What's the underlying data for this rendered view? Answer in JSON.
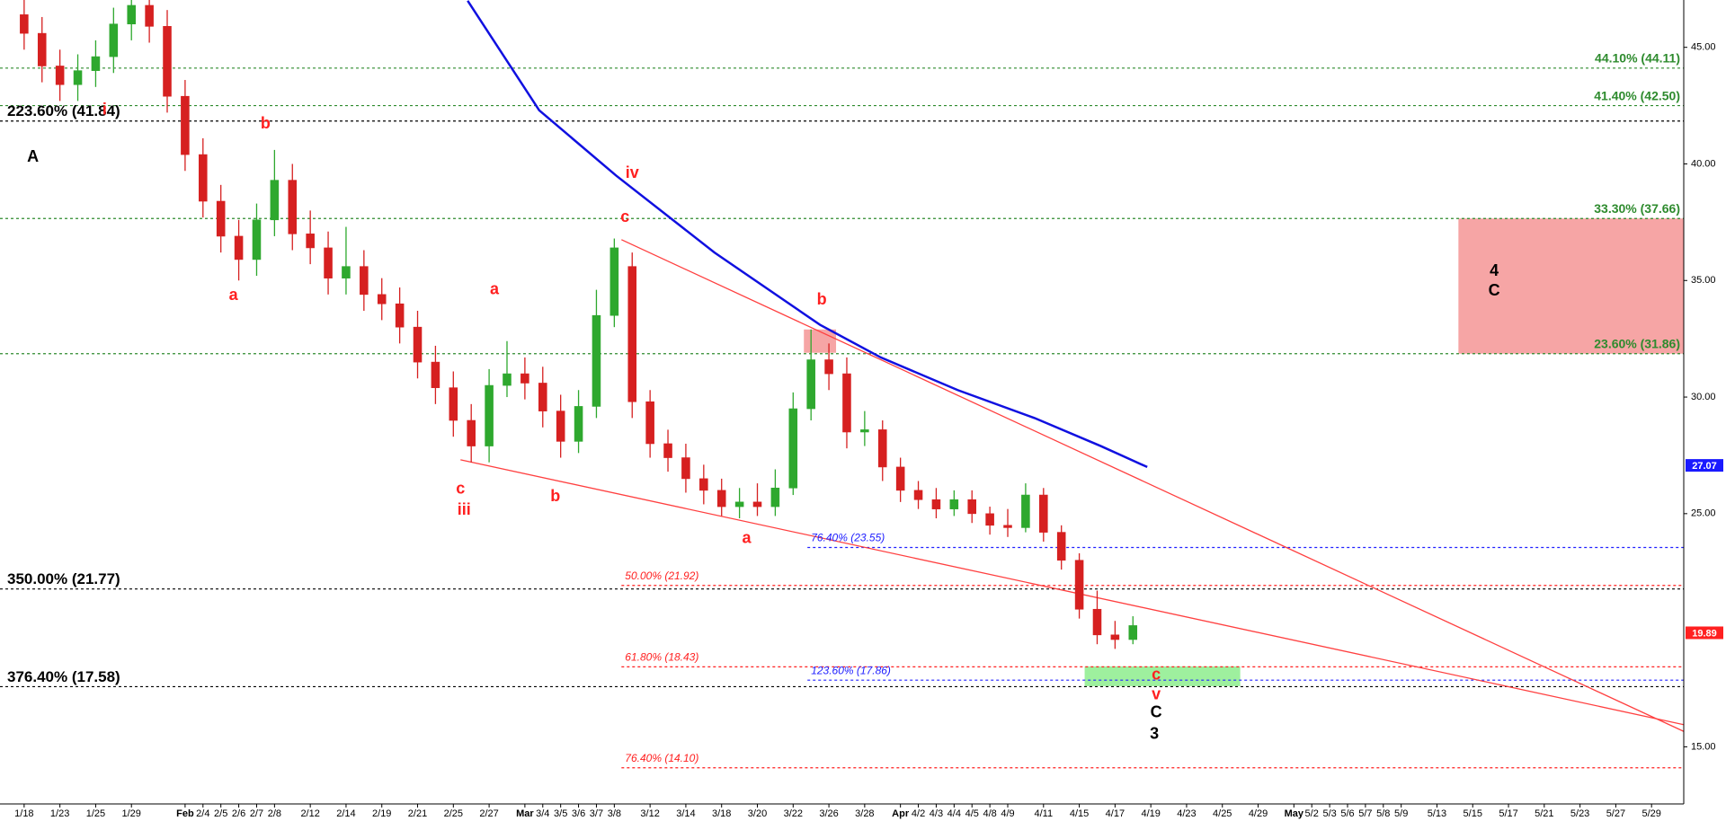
{
  "chart_data": {
    "type": "candlestick",
    "xlim": [
      -1.35,
      92.8
    ],
    "ylim": [
      12.55,
      47.03
    ],
    "xticks": [
      {
        "value": 0,
        "label": "1/18"
      },
      {
        "value": 2,
        "label": "1/23"
      },
      {
        "value": 4,
        "label": "1/25"
      },
      {
        "value": 6,
        "label": "1/29"
      },
      {
        "value": 9,
        "label": "Feb"
      },
      {
        "value": 10,
        "label": "2/4"
      },
      {
        "value": 11,
        "label": "2/5"
      },
      {
        "value": 12,
        "label": "2/6"
      },
      {
        "value": 13,
        "label": "2/7"
      },
      {
        "value": 14,
        "label": "2/8"
      },
      {
        "value": 16,
        "label": "2/12"
      },
      {
        "value": 18,
        "label": "2/14"
      },
      {
        "value": 20,
        "label": "2/19"
      },
      {
        "value": 22,
        "label": "2/21"
      },
      {
        "value": 24,
        "label": "2/25"
      },
      {
        "value": 26,
        "label": "2/27"
      },
      {
        "value": 28,
        "label": "Mar"
      },
      {
        "value": 29,
        "label": "3/4"
      },
      {
        "value": 30,
        "label": "3/5"
      },
      {
        "value": 31,
        "label": "3/6"
      },
      {
        "value": 32,
        "label": "3/7"
      },
      {
        "value": 33,
        "label": "3/8"
      },
      {
        "value": 35,
        "label": "3/12"
      },
      {
        "value": 37,
        "label": "3/14"
      },
      {
        "value": 39,
        "label": "3/18"
      },
      {
        "value": 41,
        "label": "3/20"
      },
      {
        "value": 43,
        "label": "3/22"
      },
      {
        "value": 45,
        "label": "3/26"
      },
      {
        "value": 47,
        "label": "3/28"
      },
      {
        "value": 49,
        "label": "Apr"
      },
      {
        "value": 50,
        "label": "4/2"
      },
      {
        "value": 51,
        "label": "4/3"
      },
      {
        "value": 52,
        "label": "4/4"
      },
      {
        "value": 53,
        "label": "4/5"
      },
      {
        "value": 54,
        "label": "4/8"
      },
      {
        "value": 55,
        "label": "4/9"
      },
      {
        "value": 57,
        "label": "4/11"
      },
      {
        "value": 59,
        "label": "4/15"
      },
      {
        "value": 61,
        "label": "4/17"
      },
      {
        "value": 63,
        "label": "4/19"
      },
      {
        "value": 65,
        "label": "4/23"
      },
      {
        "value": 67,
        "label": "4/25"
      },
      {
        "value": 69,
        "label": "4/29"
      },
      {
        "value": 71,
        "label": "May"
      },
      {
        "value": 72,
        "label": "5/2"
      },
      {
        "value": 73,
        "label": "5/3"
      },
      {
        "value": 74,
        "label": "5/6"
      },
      {
        "value": 75,
        "label": "5/7"
      },
      {
        "value": 76,
        "label": "5/8"
      },
      {
        "value": 77,
        "label": "5/9"
      },
      {
        "value": 79,
        "label": "5/13"
      },
      {
        "value": 81,
        "label": "5/15"
      },
      {
        "value": 83,
        "label": "5/17"
      },
      {
        "value": 85,
        "label": "5/21"
      },
      {
        "value": 87,
        "label": "5/23"
      },
      {
        "value": 89,
        "label": "5/27"
      },
      {
        "value": 91,
        "label": "5/29"
      }
    ],
    "yticks": [
      {
        "value": 15,
        "label": "15.00"
      },
      {
        "value": 25,
        "label": "25.00"
      },
      {
        "value": 30,
        "label": "30.00"
      },
      {
        "value": 35,
        "label": "35.00"
      },
      {
        "value": 40,
        "label": "40.00"
      },
      {
        "value": 45,
        "label": "45.00"
      }
    ],
    "up_color": "#2ea82e",
    "down_color": "#d62020",
    "candles": {
      "x": [
        0,
        1,
        2,
        3,
        4,
        5,
        6,
        7,
        8,
        9,
        10,
        11,
        12,
        13,
        14,
        15,
        16,
        17,
        18,
        19,
        20,
        21,
        22,
        23,
        24,
        25,
        26,
        27,
        28,
        29,
        30,
        31,
        32,
        33,
        34,
        35,
        36,
        37,
        38,
        39,
        40,
        41,
        42,
        43,
        44,
        45,
        46,
        47,
        48,
        49,
        50,
        51,
        52,
        53,
        54,
        55,
        56,
        57,
        58,
        59,
        60,
        61,
        62
      ],
      "open": [
        46.4,
        45.6,
        44.2,
        43.4,
        44.0,
        44.6,
        46.0,
        46.8,
        45.9,
        42.9,
        40.4,
        38.4,
        36.9,
        35.9,
        37.6,
        39.3,
        37.0,
        36.4,
        35.1,
        35.6,
        34.4,
        34.0,
        33.0,
        31.5,
        30.4,
        29.0,
        27.9,
        30.5,
        31.0,
        30.6,
        29.4,
        28.1,
        29.6,
        33.5,
        35.6,
        29.8,
        28.0,
        27.4,
        26.5,
        26.0,
        25.3,
        25.5,
        25.3,
        26.1,
        29.5,
        31.6,
        31.0,
        28.5,
        28.6,
        27.0,
        26.0,
        25.6,
        25.2,
        25.6,
        25.0,
        24.5,
        24.4,
        25.8,
        24.2,
        23.0,
        20.9,
        19.8,
        19.6
      ],
      "high": [
        47.1,
        46.3,
        44.9,
        44.7,
        45.3,
        46.7,
        47.5,
        47.5,
        46.6,
        43.6,
        41.1,
        39.1,
        37.6,
        38.3,
        40.6,
        40.0,
        38.0,
        37.1,
        37.3,
        36.3,
        35.1,
        34.7,
        33.7,
        32.2,
        31.1,
        29.7,
        31.2,
        32.4,
        31.7,
        31.3,
        30.1,
        30.3,
        34.6,
        36.8,
        36.2,
        30.3,
        28.6,
        28.0,
        27.1,
        26.5,
        26.1,
        26.3,
        26.9,
        30.2,
        32.9,
        32.3,
        31.7,
        29.4,
        29.0,
        27.4,
        26.4,
        26.1,
        26.0,
        26.0,
        25.3,
        25.2,
        26.3,
        26.1,
        24.5,
        23.3,
        21.7,
        20.4,
        20.6
      ],
      "low": [
        44.9,
        43.5,
        42.7,
        42.7,
        43.3,
        43.9,
        45.3,
        45.2,
        42.2,
        39.7,
        37.7,
        36.2,
        35.0,
        35.2,
        36.9,
        36.3,
        35.7,
        34.4,
        34.4,
        33.7,
        33.3,
        32.3,
        30.8,
        29.7,
        28.3,
        27.2,
        27.2,
        30.0,
        29.9,
        28.7,
        27.4,
        27.6,
        29.1,
        33.0,
        29.1,
        27.4,
        26.8,
        25.9,
        25.4,
        24.9,
        24.8,
        24.9,
        24.9,
        25.8,
        29.0,
        30.3,
        27.8,
        27.9,
        26.4,
        25.5,
        25.2,
        24.8,
        24.9,
        24.6,
        24.1,
        24.0,
        24.2,
        23.8,
        22.6,
        20.5,
        19.4,
        19.2,
        19.4
      ],
      "close": [
        45.6,
        44.2,
        43.4,
        44.0,
        44.6,
        46.0,
        46.8,
        45.9,
        42.9,
        40.4,
        38.4,
        36.9,
        35.9,
        37.6,
        39.3,
        37.0,
        36.4,
        35.1,
        35.6,
        34.4,
        34.0,
        33.0,
        31.5,
        30.4,
        29.0,
        27.9,
        30.5,
        31.0,
        30.6,
        29.4,
        28.1,
        29.6,
        33.5,
        36.4,
        29.8,
        28.0,
        27.4,
        26.5,
        26.0,
        25.3,
        25.5,
        25.3,
        26.1,
        29.5,
        31.6,
        31.0,
        28.5,
        28.6,
        27.0,
        26.0,
        25.6,
        25.2,
        25.6,
        25.0,
        24.5,
        24.4,
        25.8,
        24.2,
        23.0,
        20.9,
        19.8,
        19.6,
        20.2
      ]
    },
    "moving_average": {
      "color": "#1010e0",
      "x": [
        24.8,
        28.8,
        33.1,
        38.6,
        44.5,
        47.9,
        52.2,
        56.5,
        60.2,
        62.8
      ],
      "values": [
        47.0,
        42.3,
        39.5,
        36.2,
        33.1,
        31.7,
        30.3,
        29.1,
        27.9,
        27.0
      ]
    },
    "trendlines": [
      {
        "color": "#ff4040",
        "x": [
          33.4,
          92.8
        ],
        "values": [
          36.75,
          15.66
        ]
      },
      {
        "color": "#ff4040",
        "x": [
          24.4,
          92.8
        ],
        "values": [
          27.31,
          15.95
        ]
      }
    ],
    "levels": [
      {
        "label": "44.10% (44.11)",
        "value": 44.11,
        "color": "#2e8b2e"
      },
      {
        "label": "41.40% (42.50)",
        "value": 42.5,
        "color": "#2e8b2e"
      },
      {
        "label": "223.60% (41.84)",
        "value": 41.84,
        "color": "#000000"
      },
      {
        "label": "33.30% (37.66)",
        "value": 37.66,
        "color": "#2e8b2e"
      },
      {
        "label": "23.60% (31.86)",
        "value": 31.86,
        "color": "#2e8b2e"
      },
      {
        "label": "76.40% (23.55)",
        "value": 23.55,
        "color": "#2020ff",
        "x_start": 43.8
      },
      {
        "label": "50.00% (21.92)",
        "value": 21.92,
        "color": "#ff2020",
        "x_start": 33.4
      },
      {
        "label": "350.00% (21.77)",
        "value": 21.77,
        "color": "#000000"
      },
      {
        "label": "61.80% (18.43)",
        "value": 18.43,
        "color": "#ff2020",
        "x_start": 33.4
      },
      {
        "label": "123.60% (17.86)",
        "value": 17.86,
        "color": "#2020ff",
        "x_start": 43.8
      },
      {
        "label": "376.40% (17.58)",
        "value": 17.58,
        "color": "#000000"
      },
      {
        "label": "76.40% (14.10)",
        "value": 14.1,
        "color": "#ff2020",
        "x_start": 33.4
      }
    ],
    "zones": [
      {
        "color": "#f6a5a5",
        "x": [
          80.2,
          92.8
        ],
        "y": [
          31.86,
          37.66
        ]
      },
      {
        "color": "#f6a5a5",
        "x": [
          43.6,
          45.4
        ],
        "y": [
          31.9,
          32.9
        ]
      },
      {
        "color": "#9ef09e",
        "x": [
          59.3,
          68.0
        ],
        "y": [
          17.6,
          18.45
        ]
      }
    ],
    "annotations": [
      {
        "text": "A",
        "x": 0.49,
        "y": 40.28,
        "color": "#000000"
      },
      {
        "text": "i",
        "x": 4.5,
        "y": 42.3,
        "color": "#ff2020"
      },
      {
        "text": "b",
        "x": 13.5,
        "y": 41.7,
        "color": "#ff2020"
      },
      {
        "text": "a",
        "x": 11.7,
        "y": 34.34,
        "color": "#ff2020"
      },
      {
        "text": "a",
        "x": 26.3,
        "y": 34.6,
        "color": "#ff2020"
      },
      {
        "text": "iv",
        "x": 34.0,
        "y": 39.58,
        "color": "#ff2020"
      },
      {
        "text": "c",
        "x": 33.6,
        "y": 37.69,
        "color": "#ff2020"
      },
      {
        "text": "b",
        "x": 44.6,
        "y": 34.15,
        "color": "#ff2020"
      },
      {
        "text": "c",
        "x": 24.4,
        "y": 26.04,
        "color": "#ff2020"
      },
      {
        "text": "iii",
        "x": 24.6,
        "y": 25.14,
        "color": "#ff2020"
      },
      {
        "text": "b",
        "x": 29.7,
        "y": 25.71,
        "color": "#ff2020"
      },
      {
        "text": "a",
        "x": 40.4,
        "y": 23.92,
        "color": "#ff2020"
      },
      {
        "text": "c",
        "x": 63.3,
        "y": 18.07,
        "color": "#ff2020"
      },
      {
        "text": "v",
        "x": 63.3,
        "y": 17.22,
        "color": "#ff2020"
      },
      {
        "text": "C",
        "x": 63.3,
        "y": 16.46,
        "color": "#000000"
      },
      {
        "text": "3",
        "x": 63.2,
        "y": 15.52,
        "color": "#000000"
      },
      {
        "text": "4",
        "x": 82.2,
        "y": 35.38,
        "color": "#000000"
      },
      {
        "text": "C",
        "x": 82.2,
        "y": 34.53,
        "color": "#000000"
      }
    ],
    "price_tags": [
      {
        "value": 27.07,
        "label": "27.07",
        "color": "#1a1aff"
      },
      {
        "value": 19.89,
        "label": "19.89",
        "color": "#ff2020"
      }
    ]
  }
}
